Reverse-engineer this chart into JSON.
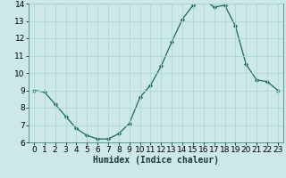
{
  "x": [
    0,
    1,
    2,
    3,
    4,
    5,
    6,
    7,
    8,
    9,
    10,
    11,
    12,
    13,
    14,
    15,
    16,
    17,
    18,
    19,
    20,
    21,
    22,
    23
  ],
  "y": [
    9.0,
    8.9,
    8.2,
    7.5,
    6.8,
    6.4,
    6.2,
    6.2,
    6.5,
    7.1,
    8.6,
    9.3,
    10.4,
    11.8,
    13.1,
    13.9,
    14.2,
    13.8,
    13.9,
    12.7,
    10.5,
    9.6,
    9.5,
    9.0
  ],
  "xlabel": "Humidex (Indice chaleur)",
  "ylim": [
    6,
    14
  ],
  "xlim_min": -0.5,
  "xlim_max": 23.5,
  "bg_color": "#cce8e8",
  "grid_color": "#b0d8d8",
  "line_color": "#1a6b5a",
  "marker_color": "#1a6b5a",
  "xticks": [
    0,
    1,
    2,
    3,
    4,
    5,
    6,
    7,
    8,
    9,
    10,
    11,
    12,
    13,
    14,
    15,
    16,
    17,
    18,
    19,
    20,
    21,
    22,
    23
  ],
  "yticks": [
    6,
    7,
    8,
    9,
    10,
    11,
    12,
    13,
    14
  ],
  "xlabel_fontsize": 7,
  "tick_fontsize": 6.5,
  "spine_color": "#5a9a8a"
}
